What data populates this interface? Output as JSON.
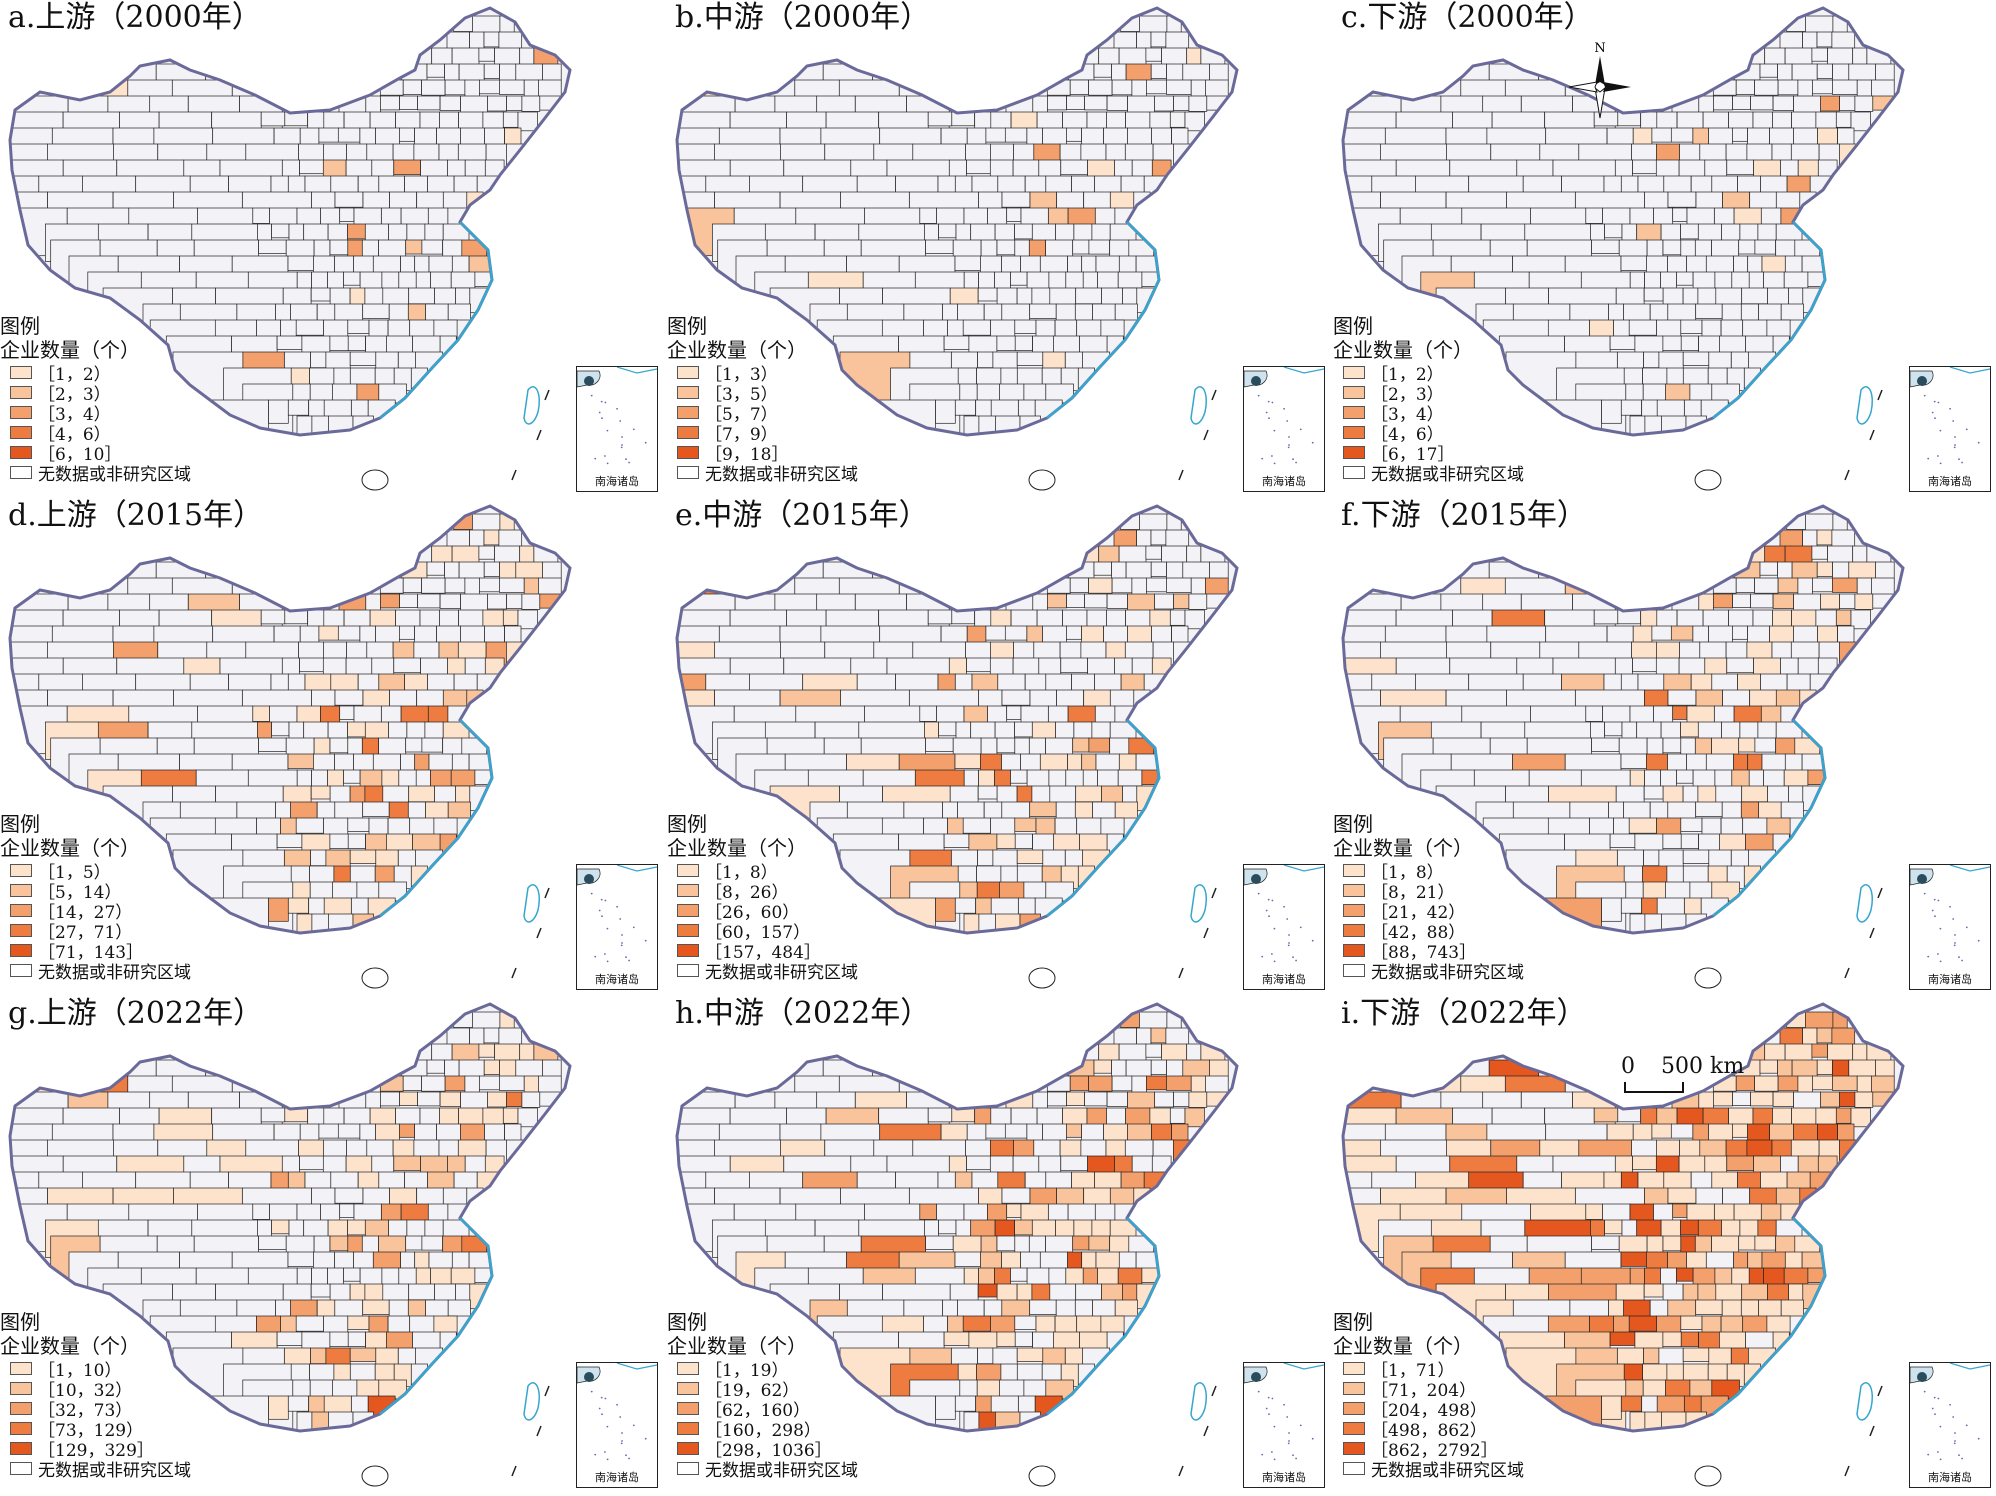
{
  "legend_header": "图例",
  "legend_subheader": "企业数量（个）",
  "no_data_label": "无数据或非研究区域",
  "inset_label": "南海诸岛",
  "compass_label": "N",
  "scale": {
    "zero": "0",
    "value": "500 km"
  },
  "colors": [
    "#fde3cc",
    "#f9c39b",
    "#f4a06c",
    "#ee7c41",
    "#e4571e"
  ],
  "no_data_color": "#f3f2f6",
  "panels": [
    {
      "id": "a",
      "title": "a.上游（2000年）",
      "shade": 0.1,
      "classes": [
        "［1，2）",
        "［2，3）",
        "［3，4）",
        "［4，6）",
        "［6，10］"
      ]
    },
    {
      "id": "b",
      "title": "b.中游（2000年）",
      "shade": 0.08,
      "classes": [
        "［1，3）",
        "［3，5）",
        "［5，7）",
        "［7，9）",
        "［9，18］"
      ]
    },
    {
      "id": "c",
      "title": "c.下游（2000年）",
      "shade": 0.09,
      "classes": [
        "［1，2）",
        "［2，3）",
        "［3，4）",
        "［4，6）",
        "［6，17］"
      ]
    },
    {
      "id": "d",
      "title": "d.上游（2015年）",
      "shade": 0.45,
      "classes": [
        "［1，5）",
        "［5，14）",
        "［14，27）",
        "［27，71）",
        "［71，143］"
      ]
    },
    {
      "id": "e",
      "title": "e.中游（2015年）",
      "shade": 0.42,
      "classes": [
        "［1，8）",
        "［8，26）",
        "［26，60）",
        "［60，157）",
        "［157，484］"
      ]
    },
    {
      "id": "f",
      "title": "f.下游（2015年）",
      "shade": 0.55,
      "classes": [
        "［1，8）",
        "［8，21）",
        "［21，42）",
        "［42，88）",
        "［88，743］"
      ]
    },
    {
      "id": "g",
      "title": "g.上游（2022年）",
      "shade": 0.55,
      "classes": [
        "［1，10）",
        "［10，32）",
        "［32，73）",
        "［73，129）",
        "［129，329］"
      ]
    },
    {
      "id": "h",
      "title": "h.中游（2022年）",
      "shade": 0.68,
      "classes": [
        "［1，19）",
        "［19，62）",
        "［62，160）",
        "［160，298）",
        "［298，1036］"
      ]
    },
    {
      "id": "i",
      "title": "i.下游（2022年）",
      "shade": 0.88,
      "classes": [
        "［1，71）",
        "［71，204）",
        "［204，498）",
        "［498，862）",
        "［862，2792］"
      ]
    }
  ]
}
